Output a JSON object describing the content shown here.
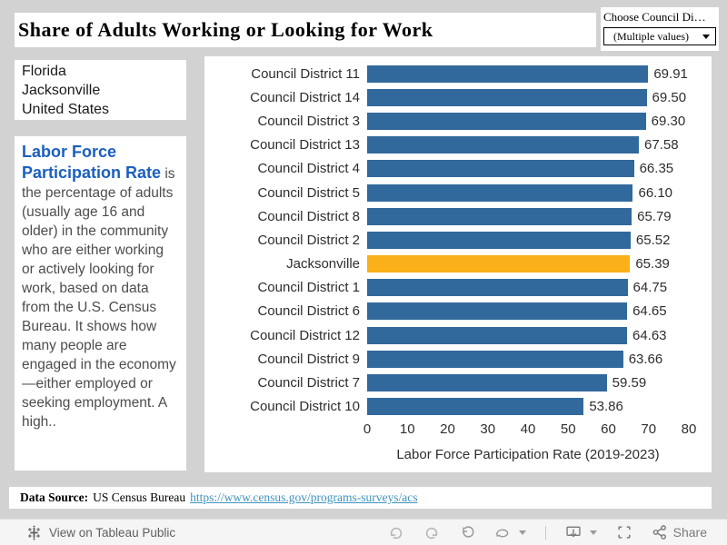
{
  "title": "Share of Adults Working or Looking for Work",
  "filter": {
    "label": "Choose Council Di…",
    "value": "(Multiple values)",
    "caret_icon": "caret-down-icon"
  },
  "geo_list": {
    "items": [
      "Florida",
      "Jacksonville",
      "United States"
    ]
  },
  "description": {
    "heading": "Labor Force Participation Rate",
    "body": " is the percentage of adults (usually age 16 and older) in the community who are either working or actively looking for work, based on data from the U.S. Census Bureau. It shows how many people are engaged in the economy—either employed or seeking employment. A high.."
  },
  "chart_data": {
    "type": "bar",
    "orientation": "horizontal",
    "categories": [
      "Council District 11",
      "Council District 14",
      "Council District 3",
      "Council District 13",
      "Council District 4",
      "Council District 5",
      "Council District 8",
      "Council District 2",
      "Jacksonville",
      "Council District 1",
      "Council District 6",
      "Council District 12",
      "Council District 9",
      "Council District 7",
      "Council District 10"
    ],
    "values": [
      69.91,
      69.5,
      69.3,
      67.58,
      66.35,
      66.1,
      65.79,
      65.52,
      65.39,
      64.75,
      64.65,
      64.63,
      63.66,
      59.59,
      53.86
    ],
    "highlight_category": "Jacksonville",
    "xlabel": "Labor Force Participation Rate (2019-2023)",
    "xlim": [
      0,
      80
    ],
    "xticks": [
      0,
      10,
      20,
      30,
      40,
      50,
      60,
      70,
      80
    ],
    "grid": false,
    "legend": false,
    "value_labels": true,
    "bar_color": "#31699c",
    "highlight_color": "#fab018"
  },
  "source": {
    "label": "Data Source:",
    "text": "US Census Bureau",
    "link": "https://www.census.gov/programs-surveys/acs"
  },
  "toolbar": {
    "view_label": "View on Tableau Public",
    "share_label": "Share",
    "icons": [
      "tableau-logo-icon",
      "undo-icon",
      "redo-icon",
      "reset-icon",
      "refresh-icon",
      "caret-down-icon",
      "download-icon",
      "caret-down-icon",
      "fullscreen-icon",
      "share-icon"
    ]
  },
  "colors": {
    "background": "#d2d2d2",
    "panel": "#ffffff",
    "heading_blue": "#1b5fbf",
    "link": "#3f93be",
    "bar_blue": "#31699c",
    "bar_orange": "#fab018"
  }
}
